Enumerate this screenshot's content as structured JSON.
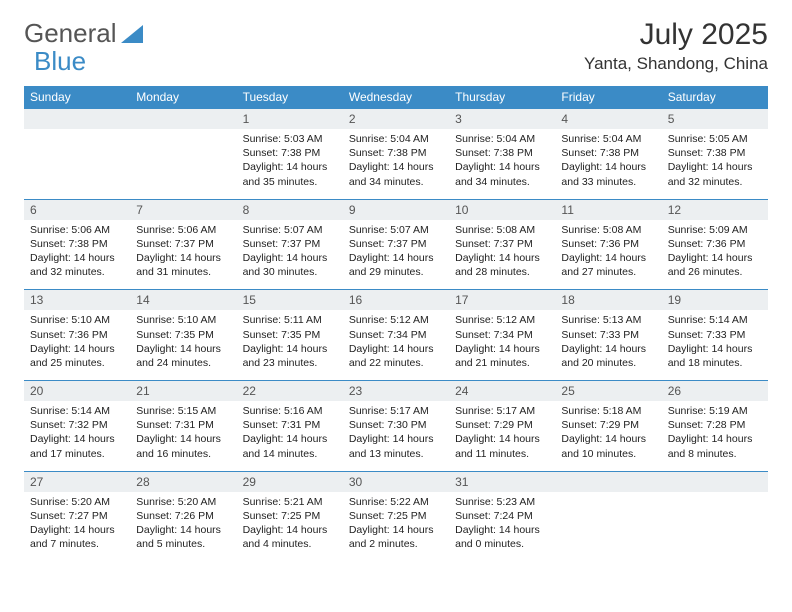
{
  "logo": {
    "text1": "General",
    "text2": "Blue",
    "color1": "#666666",
    "color2": "#3b8bc6"
  },
  "title": "July 2025",
  "location": "Yanta, Shandong, China",
  "headers": [
    "Sunday",
    "Monday",
    "Tuesday",
    "Wednesday",
    "Thursday",
    "Friday",
    "Saturday"
  ],
  "header_bg": "#3b8bc6",
  "date_bg": "#eceff1",
  "rule_color": "#3b8bc6",
  "weeks": [
    {
      "dates": [
        "",
        "",
        "1",
        "2",
        "3",
        "4",
        "5"
      ],
      "cells": [
        [],
        [],
        [
          "Sunrise: 5:03 AM",
          "Sunset: 7:38 PM",
          "Daylight: 14 hours",
          "and 35 minutes."
        ],
        [
          "Sunrise: 5:04 AM",
          "Sunset: 7:38 PM",
          "Daylight: 14 hours",
          "and 34 minutes."
        ],
        [
          "Sunrise: 5:04 AM",
          "Sunset: 7:38 PM",
          "Daylight: 14 hours",
          "and 34 minutes."
        ],
        [
          "Sunrise: 5:04 AM",
          "Sunset: 7:38 PM",
          "Daylight: 14 hours",
          "and 33 minutes."
        ],
        [
          "Sunrise: 5:05 AM",
          "Sunset: 7:38 PM",
          "Daylight: 14 hours",
          "and 32 minutes."
        ]
      ]
    },
    {
      "dates": [
        "6",
        "7",
        "8",
        "9",
        "10",
        "11",
        "12"
      ],
      "cells": [
        [
          "Sunrise: 5:06 AM",
          "Sunset: 7:38 PM",
          "Daylight: 14 hours",
          "and 32 minutes."
        ],
        [
          "Sunrise: 5:06 AM",
          "Sunset: 7:37 PM",
          "Daylight: 14 hours",
          "and 31 minutes."
        ],
        [
          "Sunrise: 5:07 AM",
          "Sunset: 7:37 PM",
          "Daylight: 14 hours",
          "and 30 minutes."
        ],
        [
          "Sunrise: 5:07 AM",
          "Sunset: 7:37 PM",
          "Daylight: 14 hours",
          "and 29 minutes."
        ],
        [
          "Sunrise: 5:08 AM",
          "Sunset: 7:37 PM",
          "Daylight: 14 hours",
          "and 28 minutes."
        ],
        [
          "Sunrise: 5:08 AM",
          "Sunset: 7:36 PM",
          "Daylight: 14 hours",
          "and 27 minutes."
        ],
        [
          "Sunrise: 5:09 AM",
          "Sunset: 7:36 PM",
          "Daylight: 14 hours",
          "and 26 minutes."
        ]
      ]
    },
    {
      "dates": [
        "13",
        "14",
        "15",
        "16",
        "17",
        "18",
        "19"
      ],
      "cells": [
        [
          "Sunrise: 5:10 AM",
          "Sunset: 7:36 PM",
          "Daylight: 14 hours",
          "and 25 minutes."
        ],
        [
          "Sunrise: 5:10 AM",
          "Sunset: 7:35 PM",
          "Daylight: 14 hours",
          "and 24 minutes."
        ],
        [
          "Sunrise: 5:11 AM",
          "Sunset: 7:35 PM",
          "Daylight: 14 hours",
          "and 23 minutes."
        ],
        [
          "Sunrise: 5:12 AM",
          "Sunset: 7:34 PM",
          "Daylight: 14 hours",
          "and 22 minutes."
        ],
        [
          "Sunrise: 5:12 AM",
          "Sunset: 7:34 PM",
          "Daylight: 14 hours",
          "and 21 minutes."
        ],
        [
          "Sunrise: 5:13 AM",
          "Sunset: 7:33 PM",
          "Daylight: 14 hours",
          "and 20 minutes."
        ],
        [
          "Sunrise: 5:14 AM",
          "Sunset: 7:33 PM",
          "Daylight: 14 hours",
          "and 18 minutes."
        ]
      ]
    },
    {
      "dates": [
        "20",
        "21",
        "22",
        "23",
        "24",
        "25",
        "26"
      ],
      "cells": [
        [
          "Sunrise: 5:14 AM",
          "Sunset: 7:32 PM",
          "Daylight: 14 hours",
          "and 17 minutes."
        ],
        [
          "Sunrise: 5:15 AM",
          "Sunset: 7:31 PM",
          "Daylight: 14 hours",
          "and 16 minutes."
        ],
        [
          "Sunrise: 5:16 AM",
          "Sunset: 7:31 PM",
          "Daylight: 14 hours",
          "and 14 minutes."
        ],
        [
          "Sunrise: 5:17 AM",
          "Sunset: 7:30 PM",
          "Daylight: 14 hours",
          "and 13 minutes."
        ],
        [
          "Sunrise: 5:17 AM",
          "Sunset: 7:29 PM",
          "Daylight: 14 hours",
          "and 11 minutes."
        ],
        [
          "Sunrise: 5:18 AM",
          "Sunset: 7:29 PM",
          "Daylight: 14 hours",
          "and 10 minutes."
        ],
        [
          "Sunrise: 5:19 AM",
          "Sunset: 7:28 PM",
          "Daylight: 14 hours",
          "and 8 minutes."
        ]
      ]
    },
    {
      "dates": [
        "27",
        "28",
        "29",
        "30",
        "31",
        "",
        ""
      ],
      "cells": [
        [
          "Sunrise: 5:20 AM",
          "Sunset: 7:27 PM",
          "Daylight: 14 hours",
          "and 7 minutes."
        ],
        [
          "Sunrise: 5:20 AM",
          "Sunset: 7:26 PM",
          "Daylight: 14 hours",
          "and 5 minutes."
        ],
        [
          "Sunrise: 5:21 AM",
          "Sunset: 7:25 PM",
          "Daylight: 14 hours",
          "and 4 minutes."
        ],
        [
          "Sunrise: 5:22 AM",
          "Sunset: 7:25 PM",
          "Daylight: 14 hours",
          "and 2 minutes."
        ],
        [
          "Sunrise: 5:23 AM",
          "Sunset: 7:24 PM",
          "Daylight: 14 hours",
          "and 0 minutes."
        ],
        [],
        []
      ]
    }
  ]
}
